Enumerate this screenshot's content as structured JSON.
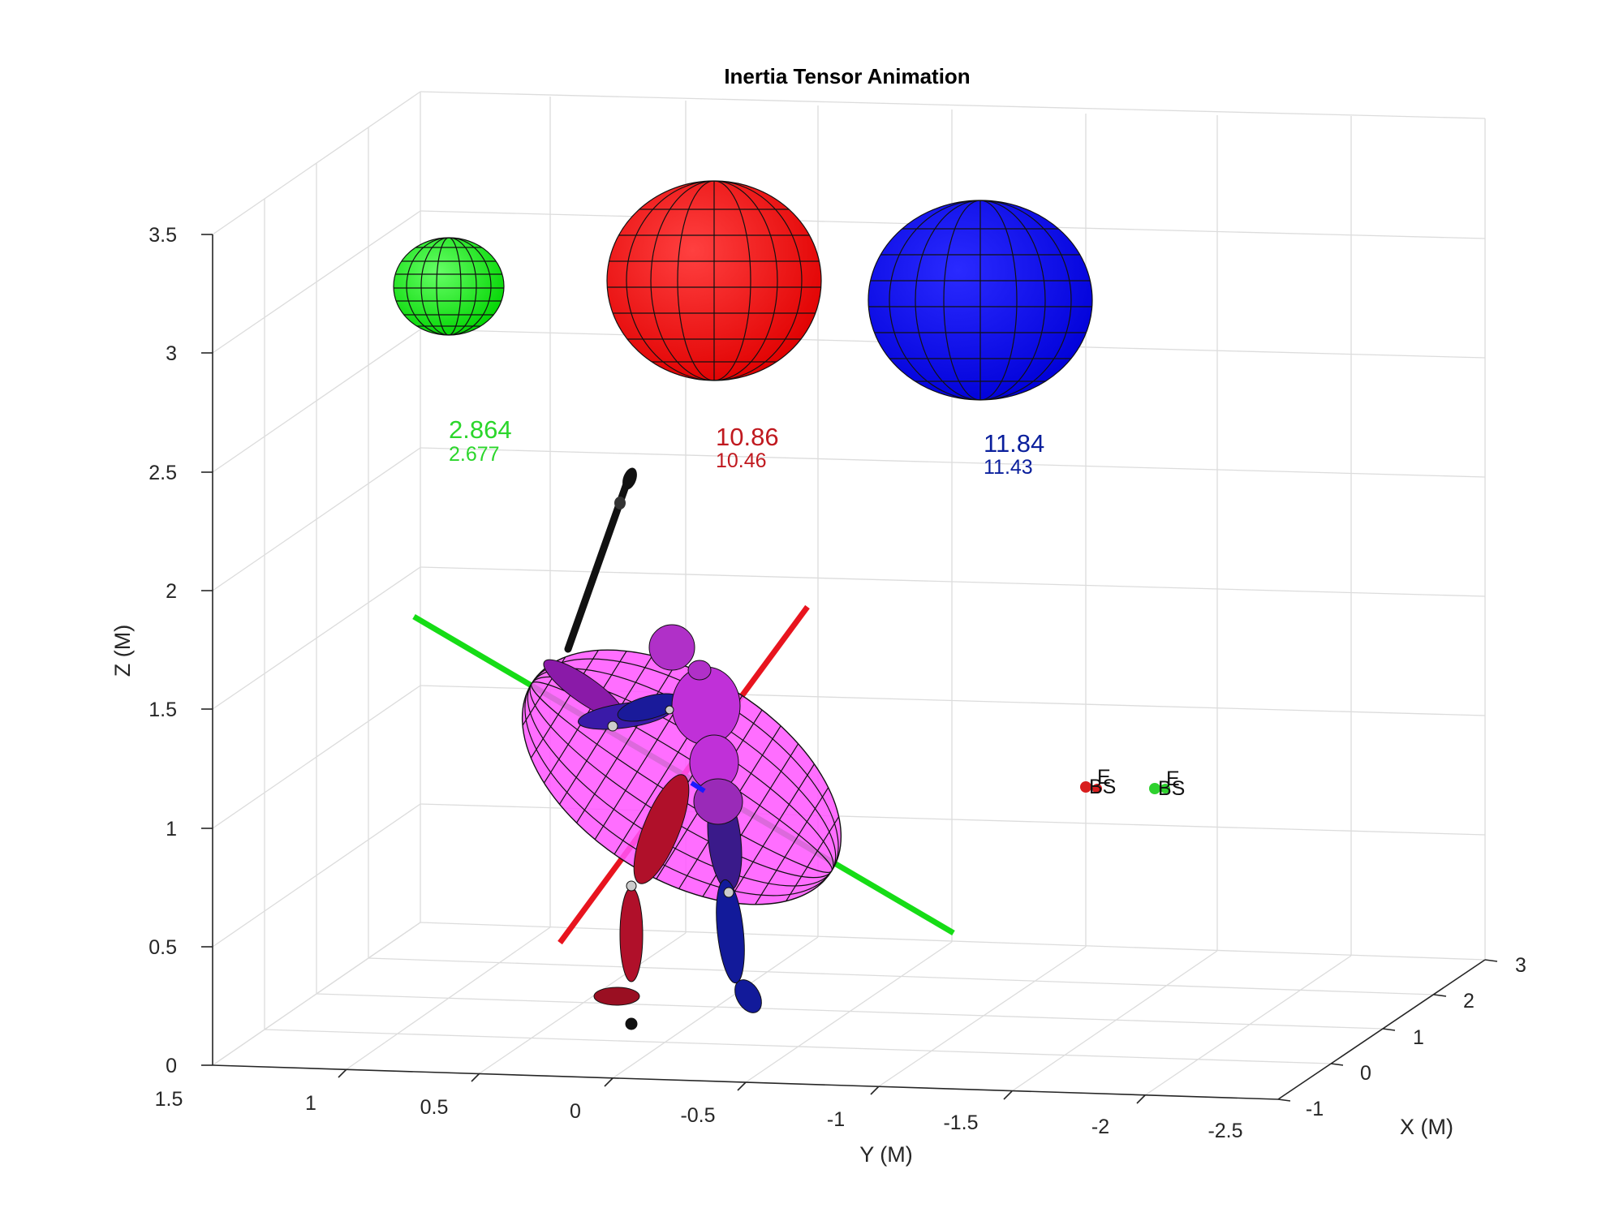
{
  "chart_data": {
    "type": "scatter",
    "title": "Inertia Tensor Animation",
    "xlabel": "X (M)",
    "ylabel": "Y (M)",
    "zlabel": "Z (M)",
    "x_ticks": [
      "-1",
      "0",
      "1",
      "2",
      "3"
    ],
    "y_ticks": [
      "1.5",
      "1",
      "0.5",
      "0",
      "-0.5",
      "-1",
      "-1.5",
      "-2",
      "-2.5"
    ],
    "z_ticks": [
      "0",
      "0.5",
      "1",
      "1.5",
      "2",
      "2.5",
      "3",
      "3.5"
    ],
    "grid": true,
    "principal_moments": [
      {
        "name": "green",
        "color": "#00ff00",
        "label_color": "#2bd62b",
        "value": "2.864",
        "sub_value": "2.677"
      },
      {
        "name": "red",
        "color": "#ff0000",
        "label_color": "#c0191f",
        "value": "10.86",
        "sub_value": "10.46"
      },
      {
        "name": "blue",
        "color": "#0000ff",
        "label_color": "#0a1f9c",
        "value": "11.84",
        "sub_value": "11.43"
      }
    ],
    "point_markers": [
      {
        "color": "#d81e1e",
        "labels": [
          "E",
          "BS"
        ]
      },
      {
        "color": "#2ed12e",
        "labels": [
          "E",
          "BS"
        ]
      }
    ],
    "colors": {
      "ellipsoid": "#ff55ff",
      "axis_green": "#16dc16",
      "axis_red": "#e8141e",
      "axis_blue": "#1a1aff",
      "club": "#111111",
      "segment_red": "#b0102a",
      "segment_blue": "#121a9a",
      "segment_purple": "#8a1aa8"
    }
  }
}
